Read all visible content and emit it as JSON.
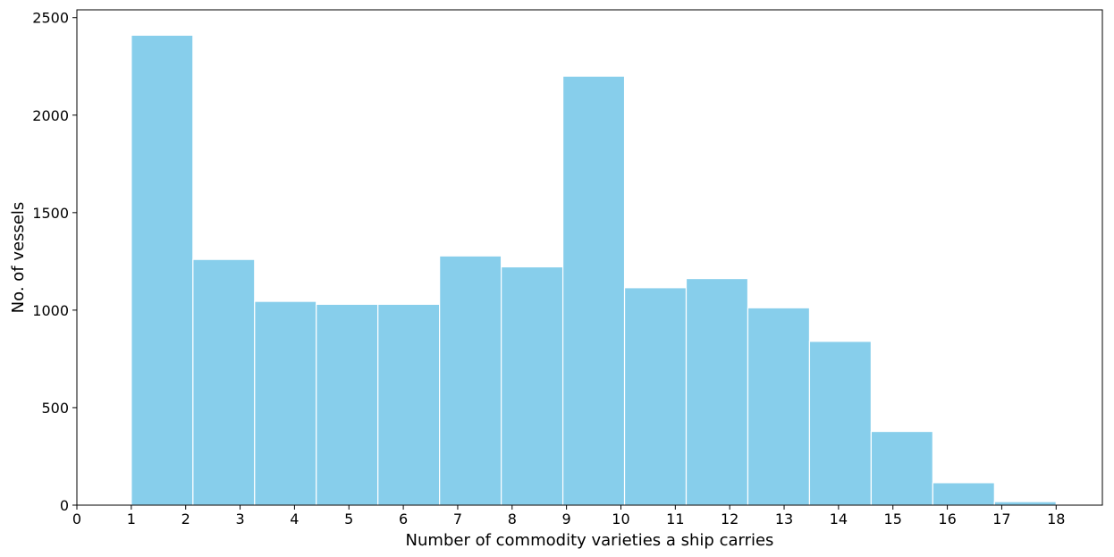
{
  "chart_data": {
    "type": "bar",
    "title": "",
    "xlabel": "Number of commodity varieties a ship carries",
    "ylabel": "No. of vessels",
    "xlim": [
      0,
      18.85
    ],
    "ylim": [
      0,
      2540
    ],
    "xticks": [
      0,
      1,
      2,
      3,
      4,
      5,
      6,
      7,
      8,
      9,
      10,
      11,
      12,
      13,
      14,
      15,
      16,
      17,
      18
    ],
    "yticks": [
      0,
      500,
      1000,
      1500,
      2000,
      2500
    ],
    "grid": false,
    "bar_color": "#87CEEB",
    "edge_color": "#ffffff",
    "bins": [
      {
        "start": 1.0,
        "end": 2.1333,
        "value": 2410
      },
      {
        "start": 2.1333,
        "end": 3.2667,
        "value": 1260
      },
      {
        "start": 3.2667,
        "end": 4.4,
        "value": 1045
      },
      {
        "start": 4.4,
        "end": 5.5333,
        "value": 1030
      },
      {
        "start": 5.5333,
        "end": 6.6667,
        "value": 1030
      },
      {
        "start": 6.6667,
        "end": 7.8,
        "value": 1278
      },
      {
        "start": 7.8,
        "end": 8.9333,
        "value": 1222
      },
      {
        "start": 8.9333,
        "end": 10.0667,
        "value": 2200
      },
      {
        "start": 10.0667,
        "end": 11.2,
        "value": 1115
      },
      {
        "start": 11.2,
        "end": 12.3333,
        "value": 1162
      },
      {
        "start": 12.3333,
        "end": 13.4667,
        "value": 1012
      },
      {
        "start": 13.4667,
        "end": 14.6,
        "value": 840
      },
      {
        "start": 14.6,
        "end": 15.7333,
        "value": 378
      },
      {
        "start": 15.7333,
        "end": 16.8667,
        "value": 115
      },
      {
        "start": 16.8667,
        "end": 18.0,
        "value": 18
      }
    ]
  }
}
